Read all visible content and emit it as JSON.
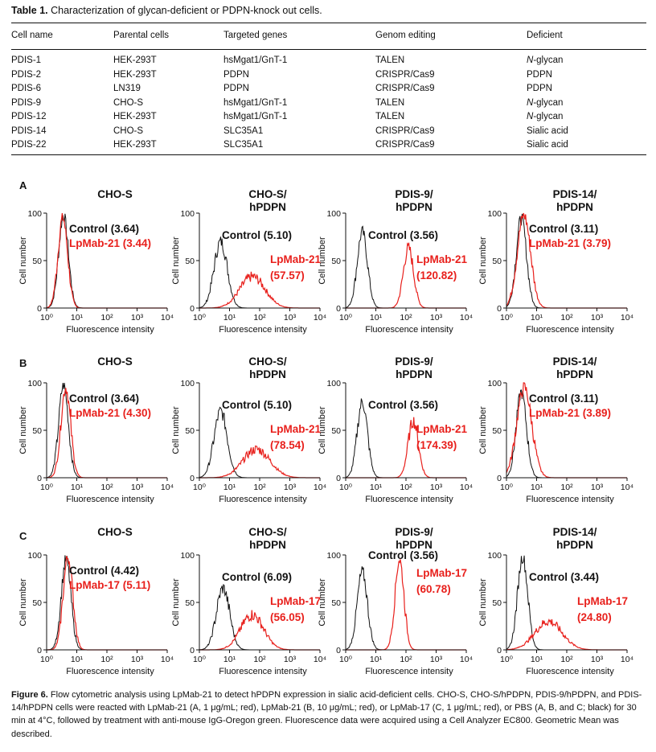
{
  "table": {
    "label": "Table 1.",
    "caption": "Characterization of glycan-deficient or PDPN-knock out cells.",
    "headers": [
      "Cell name",
      "Parental cells",
      "Targeted genes",
      "Genom editing",
      "Deficient"
    ],
    "rows": [
      [
        "PDIS-1",
        "HEK-293T",
        "hsMgat1/GnT-1",
        "TALEN",
        "N-glycan"
      ],
      [
        "PDIS-2",
        "HEK-293T",
        "PDPN",
        "CRISPR/Cas9",
        "PDPN"
      ],
      [
        "PDIS-6",
        "LN319",
        "PDPN",
        "CRISPR/Cas9",
        "PDPN"
      ],
      [
        "PDIS-9",
        "CHO-S",
        "hsMgat1/GnT-1",
        "TALEN",
        "N-glycan"
      ],
      [
        "PDIS-12",
        "HEK-293T",
        "hsMgat1/GnT-1",
        "TALEN",
        "N-glycan"
      ],
      [
        "PDIS-14",
        "CHO-S",
        "SLC35A1",
        "CRISPR/Cas9",
        "Sialic acid"
      ],
      [
        "PDIS-22",
        "HEK-293T",
        "SLC35A1",
        "CRISPR/Cas9",
        "Sialic acid"
      ]
    ]
  },
  "figure": {
    "ylabel": "Cell number",
    "xlabel": "Fluorescence intensity",
    "yticks": [
      "0",
      "50",
      "100"
    ],
    "xticks": [
      "10⁰",
      "10¹",
      "10²",
      "10³",
      "10⁴"
    ],
    "rows": [
      {
        "label": "A",
        "panels": [
          {
            "title": [
              "CHO-S"
            ],
            "control": "Control (3.64)",
            "antibody": [
              "LpMab-21 (3.44)"
            ]
          },
          {
            "title": [
              "CHO-S/",
              "hPDPN"
            ],
            "control": "Control (5.10)",
            "antibody": [
              "LpMab-21",
              "(57.57)"
            ]
          },
          {
            "title": [
              "PDIS-9/",
              "hPDPN"
            ],
            "control": "Control (3.56)",
            "antibody": [
              "LpMab-21",
              "(120.82)"
            ]
          },
          {
            "title": [
              "PDIS-14/",
              "hPDPN"
            ],
            "control": "Control (3.11)",
            "antibody": [
              "LpMab-21 (3.79)"
            ]
          }
        ]
      },
      {
        "label": "B",
        "panels": [
          {
            "title": [
              "CHO-S"
            ],
            "control": "Control (3.64)",
            "antibody": [
              "LpMab-21 (4.30)"
            ]
          },
          {
            "title": [
              "CHO-S/",
              "hPDPN"
            ],
            "control": "Control (5.10)",
            "antibody": [
              "LpMab-21",
              "(78.54)"
            ]
          },
          {
            "title": [
              "PDIS-9/",
              "hPDPN"
            ],
            "control": "Control (3.56)",
            "antibody": [
              "LpMab-21",
              "(174.39)"
            ]
          },
          {
            "title": [
              "PDIS-14/",
              "hPDPN"
            ],
            "control": "Control (3.11)",
            "antibody": [
              "LpMab-21 (3.89)"
            ]
          }
        ]
      },
      {
        "label": "C",
        "panels": [
          {
            "title": [
              "CHO-S"
            ],
            "control": "Control (4.42)",
            "antibody": [
              "LpMab-17 (5.11)"
            ]
          },
          {
            "title": [
              "CHO-S/",
              "hPDPN"
            ],
            "control": "Control (6.09)",
            "antibody": [
              "LpMab-17",
              "(56.05)"
            ]
          },
          {
            "title": [
              "PDIS-9/",
              "hPDPN"
            ],
            "control": "Control (3.56)",
            "antibody": [
              "LpMab-17",
              "(60.78)"
            ]
          },
          {
            "title": [
              "PDIS-14/",
              "hPDPN"
            ],
            "control": "Control (3.44)",
            "antibody": [
              "LpMab-17",
              "(24.80)"
            ]
          }
        ]
      }
    ],
    "colors": {
      "control": "#111111",
      "antibody": "#e8201c"
    }
  },
  "chart_data": [
    {
      "type": "area",
      "row": "A",
      "panel": "CHO-S",
      "xscale": "log",
      "xlim": [
        1,
        10000
      ],
      "ylim": [
        0,
        100
      ],
      "series": [
        {
          "name": "Control (3.64)",
          "peak_x": 3.64,
          "peak_y": 98
        },
        {
          "name": "LpMab-21 (3.44)",
          "peak_x": 3.44,
          "peak_y": 95
        }
      ]
    },
    {
      "type": "area",
      "row": "A",
      "panel": "CHO-S/hPDPN",
      "xscale": "log",
      "xlim": [
        1,
        10000
      ],
      "ylim": [
        0,
        100
      ],
      "series": [
        {
          "name": "Control (5.10)",
          "peak_x": 5.1,
          "peak_y": 70
        },
        {
          "name": "LpMab-21 (57.57)",
          "peak_x": 57.57,
          "peak_y": 33
        }
      ]
    },
    {
      "type": "area",
      "row": "A",
      "panel": "PDIS-9/hPDPN",
      "xscale": "log",
      "xlim": [
        1,
        10000
      ],
      "ylim": [
        0,
        100
      ],
      "series": [
        {
          "name": "Control (3.56)",
          "peak_x": 3.56,
          "peak_y": 80
        },
        {
          "name": "LpMab-21 (120.82)",
          "peak_x": 120.82,
          "peak_y": 63
        }
      ]
    },
    {
      "type": "area",
      "row": "A",
      "panel": "PDIS-14/hPDPN",
      "xscale": "log",
      "xlim": [
        1,
        10000
      ],
      "ylim": [
        0,
        100
      ],
      "series": [
        {
          "name": "Control (3.11)",
          "peak_x": 3.11,
          "peak_y": 95
        },
        {
          "name": "LpMab-21 (3.79)",
          "peak_x": 3.79,
          "peak_y": 98
        }
      ]
    },
    {
      "type": "area",
      "row": "B",
      "panel": "CHO-S",
      "xscale": "log",
      "xlim": [
        1,
        10000
      ],
      "ylim": [
        0,
        100
      ],
      "series": [
        {
          "name": "Control (3.64)",
          "peak_x": 3.64,
          "peak_y": 98
        },
        {
          "name": "LpMab-21 (4.30)",
          "peak_x": 4.3,
          "peak_y": 95
        }
      ]
    },
    {
      "type": "area",
      "row": "B",
      "panel": "CHO-S/hPDPN",
      "xscale": "log",
      "xlim": [
        1,
        10000
      ],
      "ylim": [
        0,
        100
      ],
      "series": [
        {
          "name": "Control (5.10)",
          "peak_x": 5.1,
          "peak_y": 70
        },
        {
          "name": "LpMab-21 (78.54)",
          "peak_x": 78.54,
          "peak_y": 30
        }
      ]
    },
    {
      "type": "area",
      "row": "B",
      "panel": "PDIS-9/hPDPN",
      "xscale": "log",
      "xlim": [
        1,
        10000
      ],
      "ylim": [
        0,
        100
      ],
      "series": [
        {
          "name": "Control (3.56)",
          "peak_x": 3.56,
          "peak_y": 80
        },
        {
          "name": "LpMab-21 (174.39)",
          "peak_x": 174.39,
          "peak_y": 60
        }
      ]
    },
    {
      "type": "area",
      "row": "B",
      "panel": "PDIS-14/hPDPN",
      "xscale": "log",
      "xlim": [
        1,
        10000
      ],
      "ylim": [
        0,
        100
      ],
      "series": [
        {
          "name": "Control (3.11)",
          "peak_x": 3.11,
          "peak_y": 90
        },
        {
          "name": "LpMab-21 (3.89)",
          "peak_x": 3.89,
          "peak_y": 95
        }
      ]
    },
    {
      "type": "area",
      "row": "C",
      "panel": "CHO-S",
      "xscale": "log",
      "xlim": [
        1,
        10000
      ],
      "ylim": [
        0,
        100
      ],
      "series": [
        {
          "name": "Control (4.42)",
          "peak_x": 4.42,
          "peak_y": 95
        },
        {
          "name": "LpMab-17 (5.11)",
          "peak_x": 5.11,
          "peak_y": 98
        }
      ]
    },
    {
      "type": "area",
      "row": "C",
      "panel": "CHO-S/hPDPN",
      "xscale": "log",
      "xlim": [
        1,
        10000
      ],
      "ylim": [
        0,
        100
      ],
      "series": [
        {
          "name": "Control (6.09)",
          "peak_x": 6.09,
          "peak_y": 65
        },
        {
          "name": "LpMab-17 (56.05)",
          "peak_x": 56.05,
          "peak_y": 37
        }
      ]
    },
    {
      "type": "area",
      "row": "C",
      "panel": "PDIS-9/hPDPN",
      "xscale": "log",
      "xlim": [
        1,
        10000
      ],
      "ylim": [
        0,
        100
      ],
      "series": [
        {
          "name": "Control (3.56)",
          "peak_x": 3.56,
          "peak_y": 82
        },
        {
          "name": "LpMab-17 (60.78)",
          "peak_x": 60.78,
          "peak_y": 95
        }
      ]
    },
    {
      "type": "area",
      "row": "C",
      "panel": "PDIS-14/hPDPN",
      "xscale": "log",
      "xlim": [
        1,
        10000
      ],
      "ylim": [
        0,
        100
      ],
      "series": [
        {
          "name": "Control (3.44)",
          "peak_x": 3.44,
          "peak_y": 98
        },
        {
          "name": "LpMab-17 (24.80)",
          "peak_x": 24.8,
          "peak_y": 30
        }
      ]
    }
  ],
  "caption": {
    "label": "Figure 6.",
    "text": "Flow cytometric analysis using LpMab-21 to detect hPDPN expression in sialic acid-deficient cells. CHO-S, CHO-S/hPDPN, PDIS-9/hPDPN, and PDIS-14/hPDPN cells were reacted with LpMab-21 (A, 1 μg/mL; red), LpMab-21 (B, 10 μg/mL; red), or LpMab-17 (C, 1 μg/mL; red), or PBS (A, B, and C; black) for 30 min at 4°C, followed by treatment with anti-mouse IgG-Oregon green. Fluorescence data were acquired using a Cell Analyzer EC800. Geometric Mean was described."
  }
}
